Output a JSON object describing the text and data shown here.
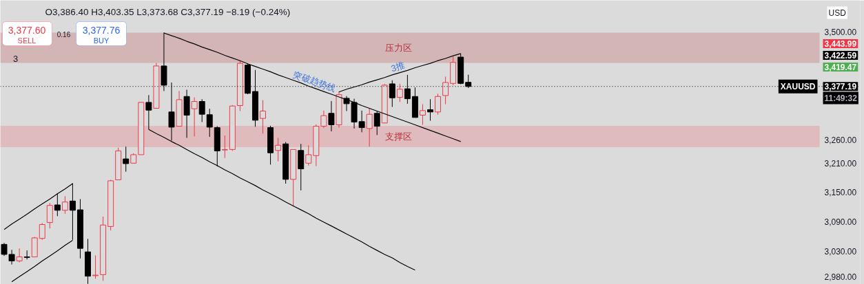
{
  "chart_data": {
    "type": "candlestick",
    "title": "O3,386.40 H3,403.35 L3,373.68 C3,377.19 −8.19 (−0.24%)",
    "categories": [
      null,
      null,
      null,
      null,
      null,
      null,
      null,
      null,
      null,
      null,
      null,
      null,
      null,
      null,
      null,
      null,
      null,
      null,
      null,
      null,
      null,
      null,
      null,
      null,
      null,
      null,
      null,
      null,
      null,
      null,
      null,
      null,
      null,
      null,
      null,
      null,
      null,
      null,
      null,
      null,
      null,
      null,
      null,
      null,
      null,
      null,
      null,
      null,
      null,
      null,
      null,
      null,
      null,
      null,
      null,
      null,
      null,
      null,
      null,
      null,
      null,
      null,
      null,
      null,
      null,
      null,
      null,
      null,
      null,
      null,
      null,
      null,
      null,
      null,
      null,
      null,
      null,
      null,
      null,
      null,
      null,
      null,
      null,
      null,
      null,
      null,
      null,
      null,
      null,
      null,
      null,
      null,
      null,
      null,
      null,
      null,
      null,
      null,
      null,
      null,
      null,
      null,
      null,
      null,
      null,
      null,
      null,
      null,
      null,
      null,
      null,
      null,
      null
    ],
    "ohlc": [
      [
        3044,
        3047,
        3021,
        3024
      ],
      [
        3024,
        3033,
        3004,
        3011
      ],
      [
        3011,
        3036,
        3008,
        3019
      ],
      [
        3019,
        3032,
        3014,
        3018
      ],
      [
        3019,
        3059,
        3019,
        3057
      ],
      [
        3056,
        3087,
        3053,
        3084
      ],
      [
        3088,
        3128,
        3076,
        3123
      ],
      [
        3124,
        3148,
        3101,
        3113
      ],
      [
        3113,
        3142,
        3106,
        3130
      ],
      [
        3132,
        3169,
        3053,
        3113
      ],
      [
        3114,
        3136,
        3016,
        3036
      ],
      [
        3029,
        3055,
        2966,
        2981
      ],
      [
        2982,
        3022,
        2976,
        2983
      ],
      [
        2984,
        3100,
        2972,
        3083
      ],
      [
        3080,
        3176,
        3072,
        3174
      ],
      [
        3176,
        3244,
        3176,
        3237
      ],
      [
        3220,
        3246,
        3193,
        3210
      ],
      [
        3211,
        3232,
        3210,
        3229
      ],
      [
        3229,
        3342,
        3229,
        3342
      ],
      [
        3342,
        3358,
        3283,
        3325
      ],
      [
        3329,
        3430,
        3329,
        3423
      ],
      [
        3423,
        3499,
        3367,
        3380
      ],
      [
        3321,
        3386,
        3259,
        3288
      ],
      [
        3290,
        3367,
        3290,
        3348
      ],
      [
        3355,
        3370,
        3265,
        3314
      ],
      [
        3328,
        3353,
        3268,
        3344
      ],
      [
        3344,
        3349,
        3299,
        3316
      ],
      [
        3315,
        3328,
        3267,
        3288
      ],
      [
        3287,
        3290,
        3204,
        3237
      ],
      [
        3239,
        3270,
        3222,
        3240
      ],
      [
        3240,
        3336,
        3237,
        3334
      ],
      [
        3335,
        3435,
        3323,
        3429
      ],
      [
        3425,
        3429,
        3360,
        3362
      ],
      [
        3366,
        3414,
        3289,
        3303
      ],
      [
        3307,
        3347,
        3274,
        3323
      ],
      [
        3287,
        3291,
        3208,
        3233
      ],
      [
        3238,
        3265,
        3215,
        3249
      ],
      [
        3252,
        3256,
        3168,
        3177
      ],
      [
        3177,
        3240,
        3121,
        3240
      ],
      [
        3238,
        3252,
        3154,
        3199
      ],
      [
        3211,
        3249,
        3206,
        3229
      ],
      [
        3227,
        3294,
        3205,
        3290
      ],
      [
        3290,
        3324,
        3286,
        3313
      ],
      [
        3318,
        3345,
        3279,
        3293
      ],
      [
        3293,
        3366,
        3287,
        3359
      ],
      [
        3351,
        3356,
        3323,
        3339
      ],
      [
        3342,
        3350,
        3285,
        3299
      ],
      [
        3300,
        3324,
        3277,
        3287
      ],
      [
        3285,
        3329,
        3246,
        3316
      ],
      [
        3318,
        3323,
        3271,
        3290
      ],
      [
        3297,
        3383,
        3297,
        3380
      ],
      [
        3383,
        3391,
        3332,
        3352
      ],
      [
        3353,
        3383,
        3343,
        3371
      ],
      [
        3372,
        3403,
        3339,
        3350
      ],
      [
        3355,
        3375,
        3309,
        3309
      ],
      [
        3314,
        3338,
        3293,
        3324
      ],
      [
        3326,
        3349,
        3302,
        3321
      ],
      [
        3321,
        3361,
        3315,
        3355
      ],
      [
        3357,
        3399,
        3338,
        3386
      ],
      [
        3384,
        3446,
        3380,
        3431
      ],
      [
        3443,
        3451,
        3382,
        3384
      ],
      [
        3386.4,
        3403.35,
        3373.68,
        3377.19
      ],
      null,
      null,
      null,
      null,
      null,
      null,
      null,
      null,
      null,
      null,
      null,
      null,
      null,
      null,
      null,
      null,
      null,
      null,
      null,
      null,
      null,
      null,
      null,
      null,
      null,
      null,
      null,
      null,
      null,
      null,
      null,
      null,
      null,
      null,
      null,
      null,
      null,
      null,
      null,
      null,
      null,
      null,
      null,
      null,
      null,
      null,
      null,
      null,
      null,
      null,
      null
    ],
    "colors": [
      "#000000",
      "#000000",
      "#f23645",
      "#000000",
      "#f23645",
      "#f23645",
      "#f23645",
      "#000000",
      "#f23645",
      "#000000",
      "#000000",
      "#000000",
      "#f23645",
      "#f23645",
      "#f23645",
      "#f23645",
      "#000000",
      "#f23645",
      "#f23645",
      "#000000",
      "#f23645",
      "#000000",
      "#000000",
      "#f23645",
      "#000000",
      "#f23645",
      "#000000",
      "#000000",
      "#000000",
      "#f23645",
      "#f23645",
      "#f23645",
      "#000000",
      "#000000",
      "#f23645",
      "#000000",
      "#f23645",
      "#000000",
      "#f23645",
      "#000000",
      "#f23645",
      "#f23645",
      "#f23645",
      "#000000",
      "#f23645",
      "#000000",
      "#000000",
      "#000000",
      "#f23645",
      "#000000",
      "#f23645",
      "#000000",
      "#f23645",
      "#000000",
      "#000000",
      "#f23645",
      "#000000",
      "#f23645",
      "#f23645",
      "#f23645",
      "#000000",
      "#000000",
      null,
      null,
      null,
      null,
      null,
      null,
      null,
      null,
      null,
      null,
      null,
      null,
      null,
      null,
      null,
      null,
      null,
      null,
      null,
      null,
      null,
      null,
      null,
      null,
      null,
      null,
      null,
      null,
      null,
      null,
      null,
      null,
      null,
      null,
      null,
      null,
      null,
      null,
      null,
      null,
      null,
      null,
      null,
      null,
      null,
      null,
      null,
      null,
      null,
      null,
      null
    ],
    "series": [
      {
        "type": "line",
        "color": "#000000",
        "values": [
          3074,
          3085,
          3095,
          3105,
          3116,
          3126,
          3136,
          3147,
          3157,
          3168,
          null,
          null,
          null,
          null,
          null,
          null,
          null,
          null,
          null,
          null,
          null,
          null,
          null,
          null,
          null,
          null,
          null,
          null,
          null,
          null,
          null,
          null,
          null,
          null,
          null,
          null,
          null,
          null,
          null,
          null,
          null,
          null,
          null,
          null,
          null,
          null,
          null,
          null,
          null,
          null,
          null,
          null,
          null,
          null,
          null,
          null,
          null,
          null,
          null,
          null,
          null,
          null,
          null,
          null,
          null,
          null,
          null,
          null,
          null,
          null,
          null,
          null,
          null,
          null,
          null,
          null,
          null,
          null,
          null,
          null,
          null,
          null,
          null,
          null,
          null,
          null,
          null,
          null,
          null,
          null,
          null,
          null,
          null,
          null,
          null,
          null,
          null,
          null,
          null,
          null,
          null,
          null,
          null,
          null,
          null,
          null,
          null,
          null,
          null,
          null,
          null,
          null,
          null
        ]
      },
      {
        "type": "line",
        "color": "#000000",
        "values": [
          null,
          2970,
          2980,
          2990,
          3000,
          3011,
          3021,
          3031,
          3042,
          3052,
          null,
          null,
          null,
          null,
          null,
          null,
          null,
          null,
          null,
          null,
          null,
          null,
          null,
          null,
          null,
          null,
          null,
          null,
          null,
          null,
          null,
          null,
          null,
          null,
          null,
          null,
          null,
          null,
          null,
          null,
          null,
          null,
          null,
          null,
          null,
          null,
          null,
          null,
          null,
          null,
          null,
          null,
          null,
          null,
          null,
          null,
          null,
          null,
          null,
          null,
          null,
          null,
          null,
          null,
          null,
          null,
          null,
          null,
          null,
          null,
          null,
          null,
          null,
          null,
          null,
          null,
          null,
          null,
          null,
          null,
          null,
          null,
          null,
          null,
          null,
          null,
          null,
          null,
          null,
          null,
          null,
          null,
          null,
          null,
          null,
          null,
          null,
          null,
          null,
          null,
          null,
          null,
          null,
          null,
          null,
          null,
          null,
          null,
          null,
          null,
          null,
          null,
          null
        ]
      },
      {
        "type": "line",
        "name": "突破趋势线",
        "color": "#000000",
        "values": [
          null,
          null,
          null,
          null,
          null,
          null,
          null,
          null,
          null,
          null,
          null,
          null,
          null,
          null,
          null,
          null,
          null,
          null,
          null,
          null,
          null,
          3498,
          3492,
          3486,
          3479,
          3473,
          3466,
          3460,
          3454,
          3447,
          3441,
          3435,
          3428,
          3422,
          3416,
          3410,
          3403,
          3397,
          3391,
          3385,
          3378,
          3372,
          3366,
          3360,
          3354,
          3348,
          3342,
          3335,
          3329,
          3323,
          3317,
          3311,
          3305,
          3299,
          3293,
          3287,
          3281,
          3275,
          3269,
          3263,
          3257,
          null,
          null,
          null,
          null,
          null,
          null,
          null,
          null,
          null,
          null,
          null,
          null,
          null,
          null,
          null,
          null,
          null,
          null,
          null,
          null,
          null,
          null,
          null,
          null,
          null,
          null,
          null,
          null,
          null,
          null,
          null,
          null,
          null,
          null,
          null,
          null,
          null,
          null,
          null,
          null,
          null,
          null,
          null,
          null,
          null,
          null,
          null,
          null,
          null,
          null,
          null,
          null
        ]
      },
      {
        "type": "line",
        "color": "#000000",
        "values": [
          null,
          null,
          null,
          null,
          null,
          null,
          null,
          null,
          null,
          null,
          null,
          null,
          null,
          null,
          null,
          null,
          null,
          null,
          null,
          3283,
          3274,
          3266,
          3257,
          3249,
          3240,
          3231,
          3223,
          3214,
          3206,
          3197,
          3189,
          3180,
          3172,
          3164,
          3155,
          3147,
          3139,
          3130,
          3122,
          3114,
          3106,
          3097,
          3089,
          3081,
          3073,
          3065,
          3057,
          3049,
          3040,
          3032,
          3024,
          3017,
          3008,
          3000,
          2993,
          null,
          null,
          null,
          null,
          null,
          null,
          null,
          null,
          null,
          null,
          null,
          null,
          null,
          null,
          null,
          null,
          null,
          null,
          null,
          null,
          null,
          null,
          null,
          null,
          null,
          null,
          null,
          null,
          null,
          null,
          null,
          null,
          null,
          null,
          null,
          null,
          null,
          null,
          null,
          null,
          null,
          null,
          null,
          null,
          null,
          null,
          null,
          null,
          null,
          null,
          null,
          null,
          null,
          null,
          null,
          null,
          null,
          null
        ]
      },
      {
        "type": "line",
        "name": "3推",
        "color": "#000000",
        "values": [
          null,
          null,
          null,
          null,
          null,
          null,
          null,
          null,
          null,
          null,
          null,
          null,
          null,
          null,
          null,
          null,
          null,
          null,
          null,
          null,
          null,
          null,
          null,
          null,
          null,
          null,
          null,
          null,
          null,
          null,
          null,
          null,
          null,
          null,
          null,
          null,
          null,
          null,
          null,
          null,
          null,
          null,
          null,
          null,
          3365,
          3371,
          3376,
          3381,
          3387,
          3392,
          3397,
          3403,
          3408,
          3413,
          3419,
          3424,
          3429,
          3435,
          3440,
          3446,
          3451,
          null,
          null,
          null,
          null,
          null,
          null,
          null,
          null,
          null,
          null,
          null,
          null,
          null,
          null,
          null,
          null,
          null,
          null,
          null,
          null,
          null,
          null,
          null,
          null,
          null,
          null,
          null,
          null,
          null,
          null,
          null,
          null,
          null,
          null,
          null,
          null,
          null,
          null,
          null,
          null,
          null,
          null,
          null,
          null,
          null,
          null,
          null,
          null,
          null,
          null,
          null,
          null
        ]
      }
    ],
    "bands": [
      {
        "axis": "y",
        "from": 3430,
        "to": 3499,
        "label": "压力区",
        "color": "#d4b5b6"
      },
      {
        "axis": "y",
        "from": 3245,
        "to": 3291,
        "label": "支撑区",
        "color": "#dfbbbe"
      }
    ],
    "ref_lines": [
      {
        "axis": "y",
        "value": 3377.19,
        "label": "XAUUSD",
        "line_style": "dotted",
        "color": "#000000"
      }
    ],
    "annotations": [
      "3,377.60",
      "SELL",
      "0.16",
      "3,377.76",
      "BUY",
      "3",
      "USD",
      "3,443.99",
      "3,422.59",
      "3,419.47",
      {
        "text": "3,377.19",
        "y": 3377.19
      },
      "11:49:32"
    ],
    "log": "y",
    "ylim": [
      2965,
      3574
    ],
    "yticks": [
      {
        "value": 2980,
        "label": "2,980.00"
      },
      {
        "value": 3030,
        "label": "3,030.00"
      },
      {
        "value": 3090,
        "label": "3,090.00"
      },
      {
        "value": 3150,
        "label": "3,150.00"
      },
      {
        "value": 3210,
        "label": "3,210.00"
      },
      {
        "value": 3260,
        "label": "3,260.00"
      },
      {
        "value": 3500,
        "label": "3,500.00"
      }
    ],
    "tick_labels": "y"
  }
}
